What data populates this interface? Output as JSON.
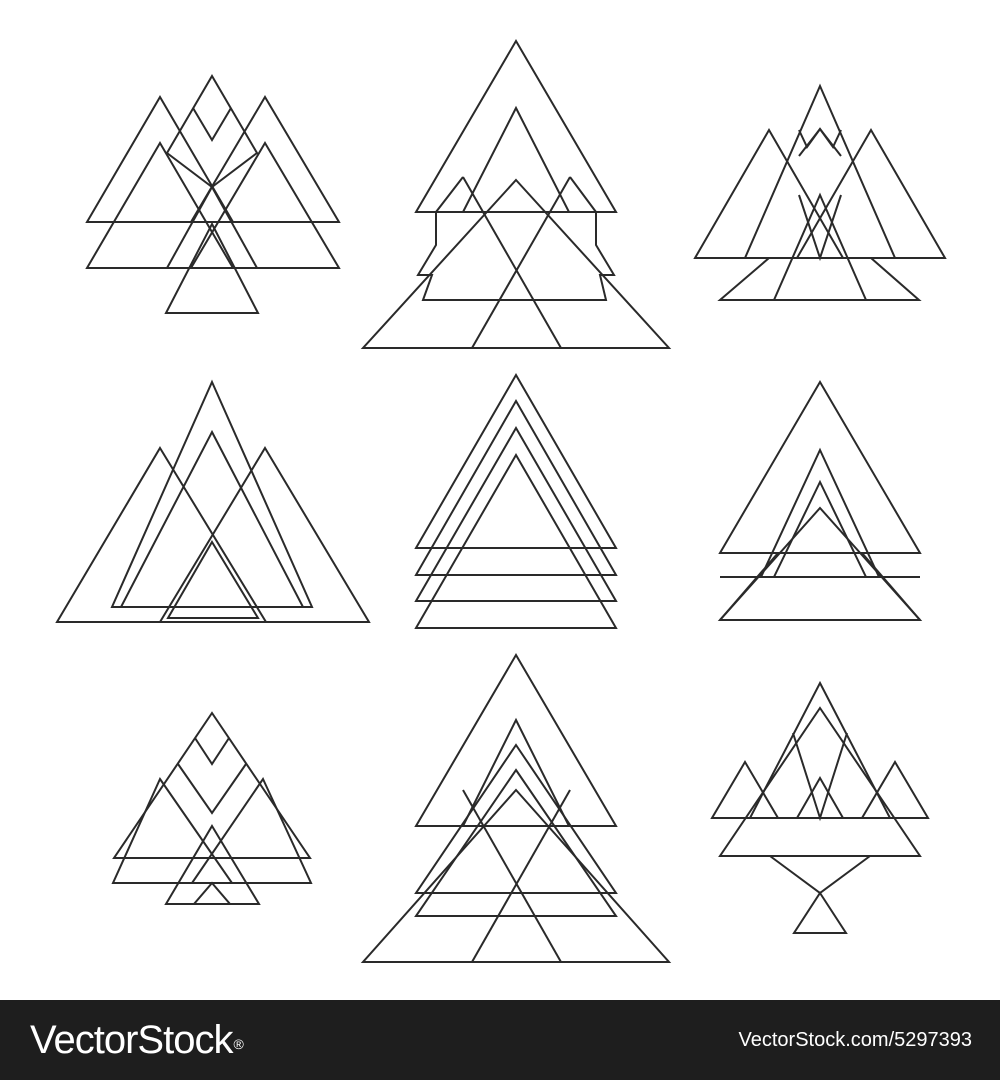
{
  "artwork": {
    "stroke_color": "#2a2a2a",
    "background_color": "#ffffff",
    "icon_count": 9,
    "icons": [
      {
        "name": "triangle-icon-1"
      },
      {
        "name": "triangle-icon-2"
      },
      {
        "name": "triangle-icon-3"
      },
      {
        "name": "triangle-icon-4"
      },
      {
        "name": "triangle-icon-5"
      },
      {
        "name": "triangle-icon-6"
      },
      {
        "name": "triangle-icon-7"
      },
      {
        "name": "triangle-icon-8"
      },
      {
        "name": "triangle-icon-9"
      }
    ]
  },
  "footer": {
    "background_color": "#1e1e1e",
    "brand": "VectorStock",
    "registered_mark": "®",
    "stock_id": "VectorStock.com/5297393"
  }
}
